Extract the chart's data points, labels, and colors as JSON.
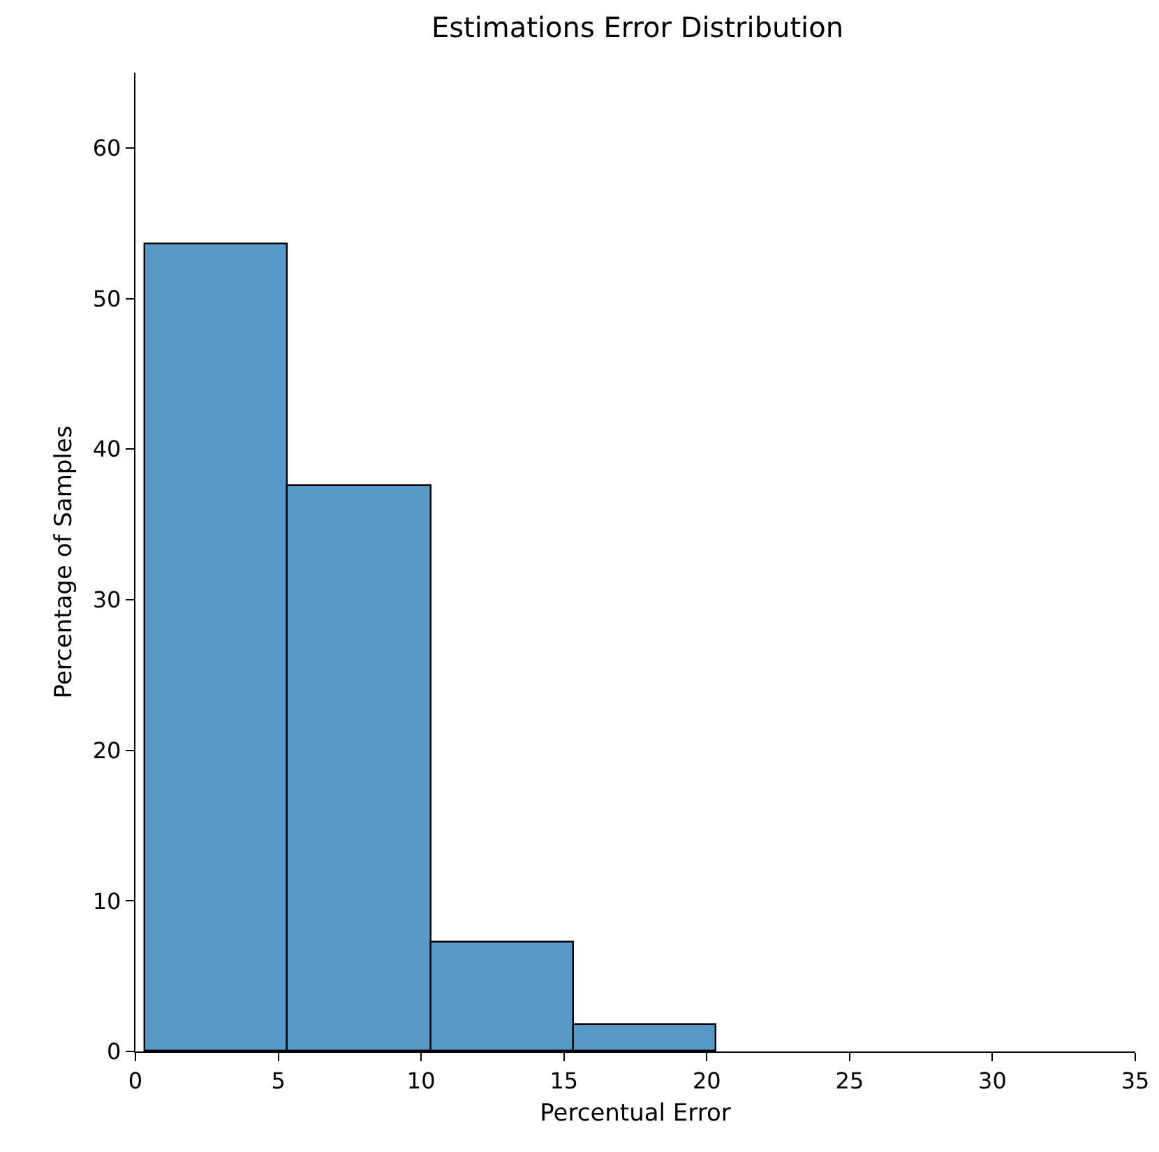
{
  "chart_data": {
    "type": "histogram",
    "title": "Estimations Error Distribution",
    "xlabel": "Percentual Error",
    "ylabel": "Percentage of Samples",
    "bins": [
      0.35,
      5.35,
      10.35,
      15.35,
      20.35
    ],
    "values": [
      53.6,
      37.6,
      7.2,
      1.8
    ],
    "color": "#5799c7",
    "xlim": [
      0,
      35
    ],
    "xticks": [
      0,
      5,
      10,
      15,
      20,
      25,
      30,
      35
    ],
    "ylim": [
      0,
      65
    ],
    "yticks": [
      0,
      10,
      20,
      30,
      40,
      50,
      60
    ],
    "grid": false
  }
}
